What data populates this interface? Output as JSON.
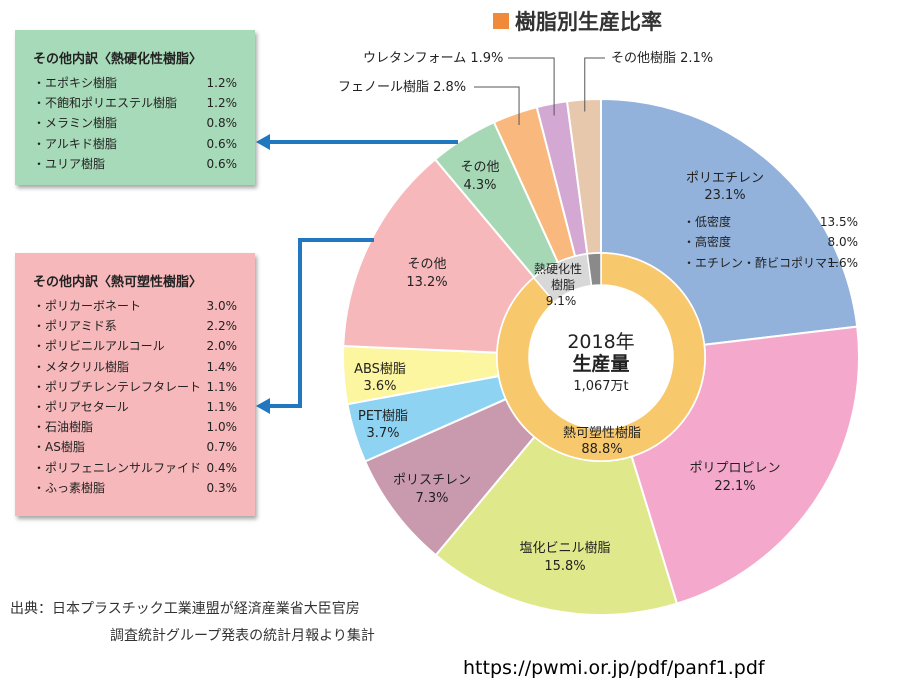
{
  "colors": {
    "pe": "#92b1db",
    "pp": "#f4a9cc",
    "pvc": "#dfe88a",
    "ps": "#c999ae",
    "pet": "#8ed3f2",
    "abs": "#fdf6a0",
    "other_tp": "#f6b8ba",
    "other_ts": "#a6d8b6",
    "phenol": "#f9b97e",
    "urethane": "#d3a8d3",
    "other_resin": "#e8c8ac",
    "inner_tp": "#f8c96c",
    "inner_ts": "#d8d8d8",
    "inner_dark": "#8a8a8a",
    "arrow": "#2178c0",
    "green_box": "#a7dab8",
    "pink_box": "#f6b8ba",
    "title_square": "#f08a3a"
  },
  "title": "樹脂別生産比率",
  "center": {
    "line1": "2018年",
    "line2": "生産量",
    "line3": "1,067万t"
  },
  "chart_data": {
    "type": "pie",
    "title": "樹脂別生産比率",
    "total": "1,067万t",
    "year": "2018年",
    "outer_ring": [
      {
        "name": "ポリエチレン",
        "value": 23.1
      },
      {
        "name": "ポリプロピレン",
        "value": 22.1
      },
      {
        "name": "塩化ビニル樹脂",
        "value": 15.8
      },
      {
        "name": "ポリスチレン",
        "value": 7.3
      },
      {
        "name": "PET樹脂",
        "value": 3.7
      },
      {
        "name": "ABS樹脂",
        "value": 3.6
      },
      {
        "name": "その他",
        "value": 13.2
      },
      {
        "name": "その他",
        "value": 4.3
      },
      {
        "name": "フェノール樹脂",
        "value": 2.8
      },
      {
        "name": "ウレタンフォーム",
        "value": 1.9
      },
      {
        "name": "その他樹脂",
        "value": 2.1
      }
    ],
    "inner_ring": [
      {
        "name": "熱可塑性樹脂",
        "value": 88.8
      },
      {
        "name": "熱硬化性樹脂",
        "value": 9.1
      },
      {
        "name": "",
        "value": 2.1
      }
    ],
    "pe_breakdown": [
      {
        "name": "・低密度",
        "value": "13.5%"
      },
      {
        "name": "・高密度",
        "value": "8.0%"
      },
      {
        "name": "・エチレン・酢ビコポリマー",
        "value": "1.6%"
      }
    ]
  },
  "labels": {
    "pe": {
      "name": "ポリエチレン",
      "value": "23.1%"
    },
    "pp": {
      "name": "ポリプロピレン",
      "value": "22.1%"
    },
    "pvc": {
      "name": "塩化ビニル樹脂",
      "value": "15.8%"
    },
    "ps": {
      "name": "ポリスチレン",
      "value": "7.3%"
    },
    "pet": {
      "name": "PET樹脂",
      "value": "3.7%"
    },
    "abs": {
      "name": "ABS樹脂",
      "value": "3.6%"
    },
    "other_tp": {
      "name": "その他",
      "value": "13.2%"
    },
    "other_ts": {
      "name": "その他",
      "value": "4.3%"
    },
    "phenol": "フェノール樹脂 2.8%",
    "urethane": "ウレタンフォーム 1.9%",
    "other_resin": "その他樹脂 2.1%",
    "inner_tp": {
      "name": "熱可塑性樹脂",
      "value": "88.8%"
    },
    "inner_ts": {
      "name1": "熱硬化性",
      "name2": "樹脂",
      "value": "9.1%"
    }
  },
  "thermoset_box": {
    "title": "その他内訳〈熱硬化性樹脂〉",
    "items": [
      {
        "name": "・エポキシ樹脂",
        "value": "1.2%"
      },
      {
        "name": "・不飽和ポリエステル樹脂",
        "value": "1.2%"
      },
      {
        "name": "・メラミン樹脂",
        "value": "0.8%"
      },
      {
        "name": "・アルキド樹脂",
        "value": "0.6%"
      },
      {
        "name": "・ユリア樹脂",
        "value": "0.6%"
      }
    ]
  },
  "thermoplastic_box": {
    "title": "その他内訳〈熱可塑性樹脂〉",
    "items": [
      {
        "name": "・ポリカーボネート",
        "value": "3.0%"
      },
      {
        "name": "・ポリアミド系",
        "value": "2.2%"
      },
      {
        "name": "・ポリビニルアルコール",
        "value": "2.0%"
      },
      {
        "name": "・メタクリル樹脂",
        "value": "1.4%"
      },
      {
        "name": "・ポリブチレンテレフタレート",
        "value": "1.1%"
      },
      {
        "name": "・ポリアセタール",
        "value": "1.1%"
      },
      {
        "name": "・石油樹脂",
        "value": "1.0%"
      },
      {
        "name": "・AS樹脂",
        "value": "0.7%"
      },
      {
        "name": "・ポリフェニレンサルファイド",
        "value": "0.4%"
      },
      {
        "name": "・ふっ素樹脂",
        "value": "0.3%"
      }
    ]
  },
  "source": {
    "line1": "出典：日本プラスチック工業連盟が経済産業省大臣官房",
    "line2": "調査統計グループ発表の統計月報より集計"
  },
  "url": "https://pwmi.or.jp/pdf/panf1.pdf"
}
